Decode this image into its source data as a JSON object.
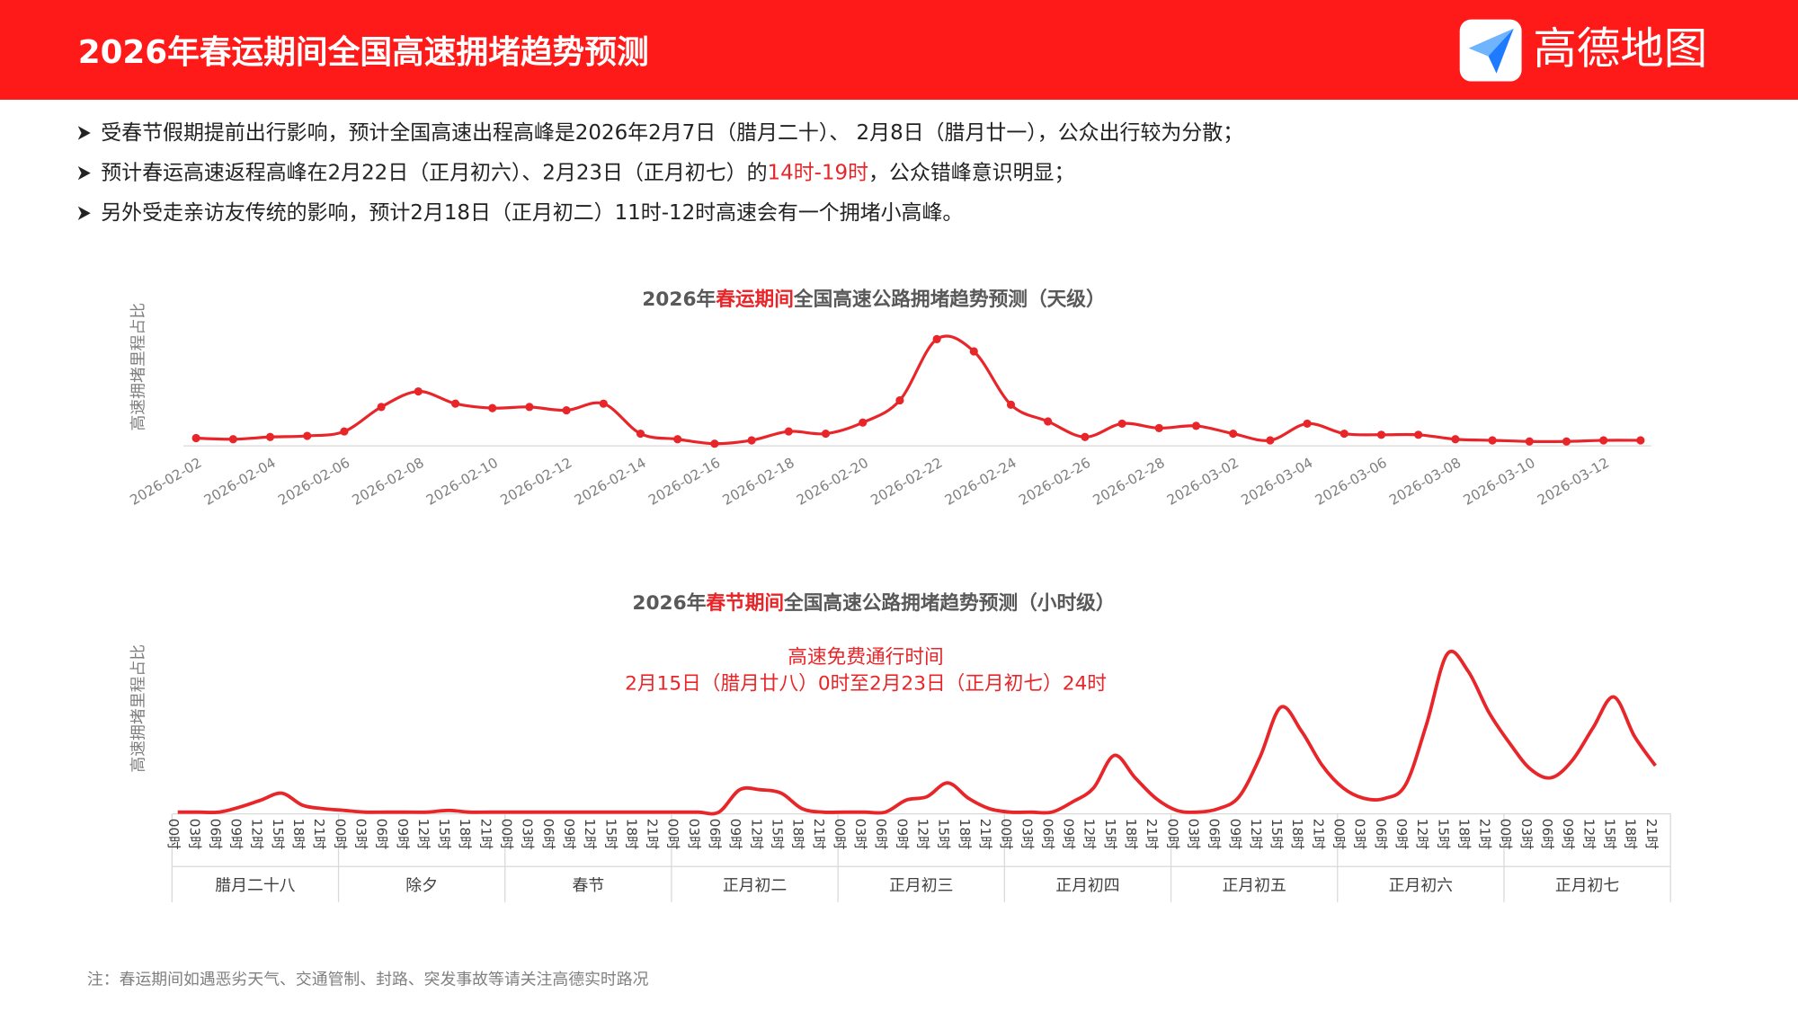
{
  "header": {
    "title": "2026年春运期间全国高速拥堵趋势预测",
    "logo": "高德地图"
  },
  "bullets": [
    [
      {
        "text": "受春节假期提前出行影响，预计全国高速出程高峰是2026年2月7日（腊月二十）、 2月8日（腊月廿一），公众出行较为分散；"
      }
    ],
    [
      {
        "text": "预计春运高速返程高峰在2月22日（正月初六）、2月23日（正月初七）的"
      },
      {
        "text": "14时-19时",
        "color": "#e8262a"
      },
      {
        "text": "，公众错峰意识明显；"
      }
    ],
    [
      {
        "text": "另外受走亲访友传统的影响，预计2月18日（正月初二）11时-12时高速会有一个拥堵小高峰。"
      }
    ]
  ],
  "note": "注：春运期间如遇恶劣天气、交通管制、封路、突发事故等请关注高德实时路况",
  "chart_data": [
    {
      "type": "line",
      "title": [
        {
          "text": "2026年"
        },
        {
          "text": "春运期间",
          "color": "#e8262a"
        },
        {
          "text": "全国高速公路拥堵趋势预测（天级）"
        }
      ],
      "y_label": "高速拥堵里程占比",
      "color": "#e8262a",
      "markers": true,
      "categories": [
        "2026-02-02",
        null,
        "2026-02-04",
        null,
        "2026-02-06",
        null,
        "2026-02-08",
        null,
        "2026-02-10",
        null,
        "2026-02-12",
        null,
        "2026-02-14",
        null,
        "2026-02-16",
        null,
        "2026-02-18",
        null,
        "2026-02-20",
        null,
        "2026-02-22",
        null,
        "2026-02-24",
        null,
        "2026-02-26",
        null,
        "2026-02-28",
        null,
        "2026-03-02",
        null,
        "2026-03-04",
        null,
        "2026-03-06",
        null,
        "2026-03-08",
        null,
        "2026-03-10",
        null,
        "2026-03-12",
        null
      ],
      "values": [
        7,
        6,
        8,
        9,
        13,
        35,
        49,
        38,
        34,
        35,
        32,
        38,
        11,
        6,
        2,
        5,
        13,
        11,
        21,
        41,
        96,
        85,
        37,
        22,
        8,
        20,
        16,
        18,
        11,
        5,
        20,
        11,
        10,
        10,
        6,
        5,
        4,
        4,
        5,
        5
      ],
      "ylim": [
        0,
        100
      ]
    },
    {
      "type": "line",
      "title": [
        {
          "text": "2026年"
        },
        {
          "text": "春节期间",
          "color": "#e8262a"
        },
        {
          "text": "全国高速公路拥堵趋势预测（小时级）"
        }
      ],
      "y_label": "高速拥堵里程占比",
      "annotation": [
        "高速免费通行时间",
        "2月15日（腊月廿八）0时至2月23日（正月初七）24时"
      ],
      "color": "#e8262a",
      "markers": false,
      "groups": [
        "腊月二十八",
        "除夕",
        "春节",
        "正月初二",
        "正月初三",
        "正月初四",
        "正月初五",
        "正月初六",
        "正月初七"
      ],
      "categories": [
        "00时",
        "03时",
        "06时",
        "09时",
        "12时",
        "15时",
        "18时",
        "21时",
        "00时",
        "03时",
        "06时",
        "09时",
        "12时",
        "15时",
        "18时",
        "21时",
        "00时",
        "03时",
        "06时",
        "09时",
        "12时",
        "15时",
        "18时",
        "21时",
        "00时",
        "03时",
        "06时",
        "09时",
        "12时",
        "15时",
        "18时",
        "21时",
        "00时",
        "03时",
        "06时",
        "09时",
        "12时",
        "15时",
        "18时",
        "21时",
        "00时",
        "03时",
        "06时",
        "09时",
        "12时",
        "15时",
        "18时",
        "21时",
        "00时",
        "03时",
        "06时",
        "09时",
        "12时",
        "15时",
        "18时",
        "21时",
        "00时",
        "03时",
        "06时",
        "09时",
        "12时",
        "15时",
        "18时",
        "21时",
        "00时",
        "03时",
        "06时",
        "09时",
        "12时",
        "15时",
        "18时",
        "21时"
      ],
      "values": [
        1,
        1,
        1,
        4,
        8,
        12,
        5,
        3,
        2,
        1,
        1,
        1,
        1,
        2,
        1,
        1,
        1,
        1,
        1,
        1,
        1,
        1,
        1,
        1,
        1,
        1,
        1,
        14,
        14,
        12,
        3,
        1,
        1,
        1,
        1,
        8,
        10,
        18,
        9,
        3,
        1,
        1,
        1,
        7,
        15,
        34,
        21,
        9,
        2,
        1,
        3,
        10,
        33,
        62,
        48,
        28,
        15,
        9,
        9,
        17,
        52,
        93,
        83,
        59,
        41,
        26,
        21,
        31,
        50,
        68,
        45,
        28
      ],
      "ylim": [
        0,
        100
      ]
    }
  ]
}
